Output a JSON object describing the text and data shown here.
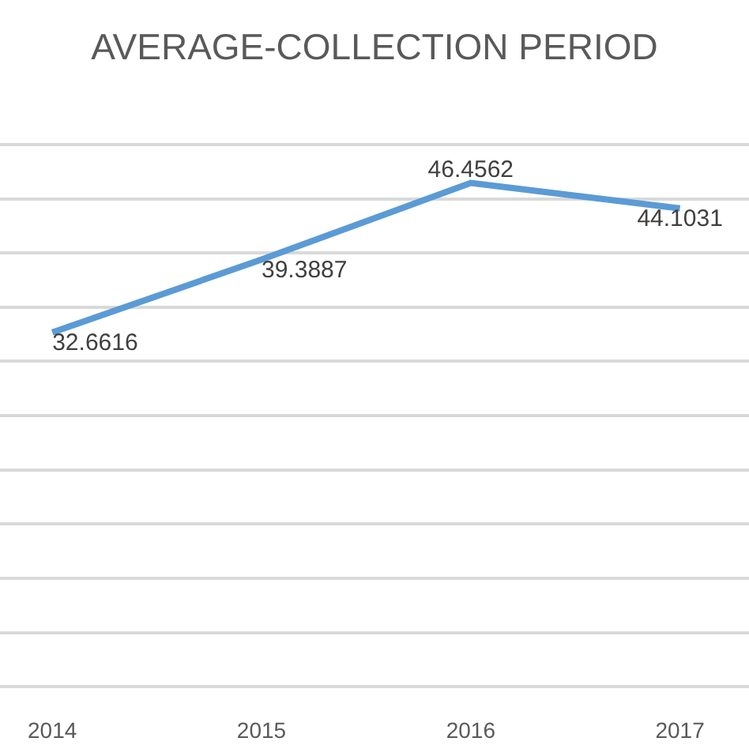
{
  "chart_data": {
    "type": "line",
    "title": "AVERAGE-COLLECTION PERIOD",
    "x": [
      2014,
      2015,
      2016,
      2017
    ],
    "series": [
      {
        "color": "#5b9bd5",
        "values": [
          32.6616,
          39.3887,
          46.4562,
          44.1031
        ],
        "value_labels": [
          "32.6616",
          "39.3887",
          "46.4562",
          "44.1031"
        ]
      }
    ],
    "xlim": [
      2013.75,
      2017.33
    ],
    "xticks": [
      2014,
      2015,
      2016,
      2017
    ],
    "ylim": [
      -0.5,
      50.5
    ],
    "yticks": [
      {
        "value": 0,
        "label": null
      },
      {
        "value": 5,
        "label": null
      },
      {
        "value": 10,
        "label": null
      },
      {
        "value": 15,
        "label": null
      },
      {
        "value": 20,
        "label": null
      },
      {
        "value": 25,
        "label": null
      },
      {
        "value": 30,
        "label": null
      },
      {
        "value": 35,
        "label": null
      },
      {
        "value": 40,
        "label": null
      },
      {
        "value": 45,
        "label": null
      },
      {
        "value": 50,
        "label": null
      }
    ],
    "grid": "y",
    "marker": "none",
    "line_style": "solid",
    "tick_labels": "x"
  }
}
